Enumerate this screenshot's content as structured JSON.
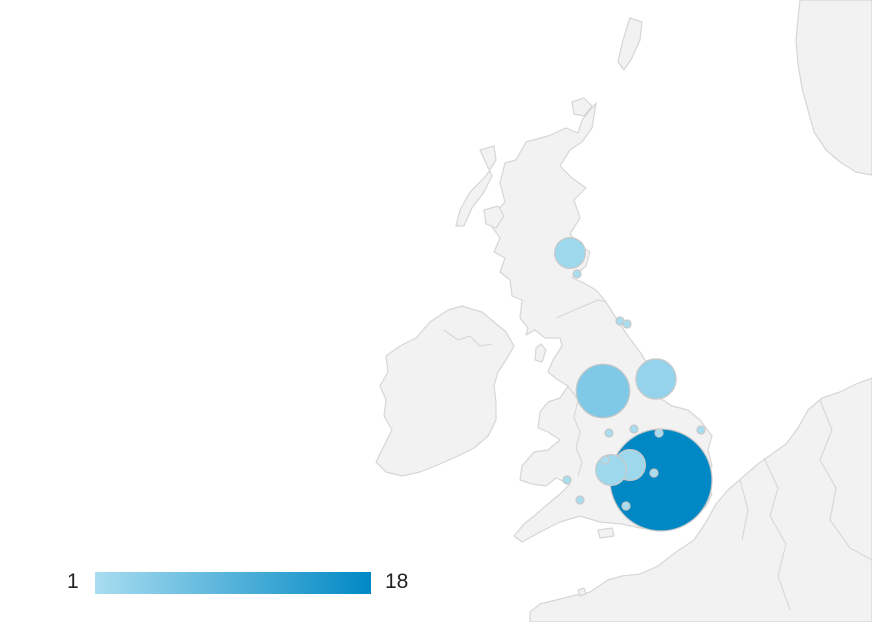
{
  "map": {
    "region": "United Kingdom",
    "colors": {
      "land": "#f2f2f2",
      "border": "#d6d6d6",
      "scale_min": "#a8ddf0",
      "scale_max": "#0088c4"
    },
    "bubbles": [
      {
        "value": 18
      },
      {
        "value": 5
      },
      {
        "value": 3
      },
      {
        "value": 2
      },
      {
        "value": 2
      },
      {
        "value": 2
      },
      {
        "value": 1
      },
      {
        "value": 1
      },
      {
        "value": 1
      },
      {
        "value": 1
      },
      {
        "value": 1
      },
      {
        "value": 1
      },
      {
        "value": 1
      },
      {
        "value": 1
      },
      {
        "value": 1
      },
      {
        "value": 1
      },
      {
        "value": 1
      },
      {
        "value": 1
      }
    ]
  },
  "legend": {
    "min": "1",
    "max": "18",
    "min_value": 1,
    "max_value": 18
  }
}
